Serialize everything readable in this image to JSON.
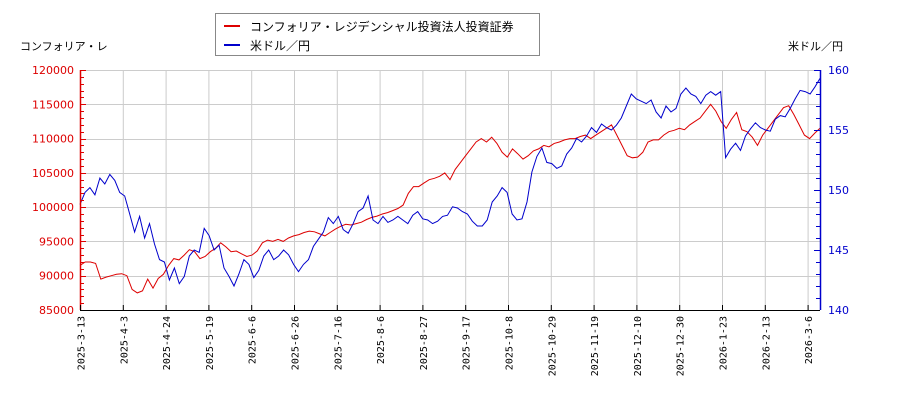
{
  "legend": {
    "series1": "コンフォリア・レジデンシャル投資法人投資証券",
    "series2": "米ドル／円"
  },
  "axes": {
    "left_title": "コンフォリア・レ",
    "right_title": "米ドル／円"
  },
  "colors": {
    "series1": "#dd0000",
    "series2": "#0000cc",
    "grid": "#cccccc"
  },
  "chart_data": {
    "type": "line",
    "title": "",
    "xlabel": "",
    "ylabel_left": "コンフォリア・レ",
    "ylabel_right": "米ドル／円",
    "x_tick_labels": [
      "2025-3-13",
      "2025-4-3",
      "2025-4-24",
      "2025-5-19",
      "2025-6-6",
      "2025-6-26",
      "2025-7-16",
      "2025-8-6",
      "2025-8-27",
      "2025-9-17",
      "2025-10-8",
      "2025-10-29",
      "2025-11-19",
      "2025-12-10",
      "2025-12-30",
      "2026-1-23",
      "2026-2-13",
      "2026-3-6"
    ],
    "y_left": {
      "min": 85000,
      "max": 120000,
      "ticks": [
        85000,
        90000,
        95000,
        100000,
        105000,
        110000,
        115000,
        120000
      ]
    },
    "y_right": {
      "min": 140,
      "max": 160,
      "ticks": [
        140,
        145,
        150,
        155,
        160
      ]
    },
    "grid": true,
    "legend_position": "top",
    "series": [
      {
        "name": "コンフォリア・レジデンシャル投資法人投資証券",
        "axis": "left",
        "color": "#dd0000",
        "values": [
          91500,
          92000,
          92000,
          91800,
          89500,
          89800,
          90000,
          90200,
          90300,
          90000,
          88000,
          87500,
          87800,
          89500,
          88200,
          89600,
          90200,
          91500,
          92500,
          92300,
          93000,
          93800,
          93500,
          92500,
          92800,
          93500,
          94000,
          94800,
          94200,
          93500,
          93600,
          93200,
          92800,
          93000,
          93600,
          94800,
          95200,
          95000,
          95300,
          95000,
          95500,
          95800,
          96000,
          96300,
          96500,
          96400,
          96100,
          95800,
          96300,
          96800,
          97200,
          97500,
          97400,
          97600,
          97800,
          98200,
          98500,
          98700,
          99000,
          99200,
          99500,
          99800,
          100300,
          102000,
          103000,
          103000,
          103500,
          104000,
          104200,
          104500,
          105000,
          104000,
          105500,
          106500,
          107500,
          108500,
          109500,
          110000,
          109500,
          110200,
          109300,
          108000,
          107300,
          108500,
          107800,
          107000,
          107500,
          108200,
          108500,
          109000,
          108800,
          109300,
          109500,
          109800,
          110000,
          110000,
          110300,
          110500,
          110000,
          110500,
          111000,
          111500,
          112000,
          110500,
          109000,
          107500,
          107200,
          107300,
          108000,
          109500,
          109800,
          109800,
          110500,
          111000,
          111200,
          111500,
          111300,
          112000,
          112500,
          113000,
          114000,
          115000,
          114000,
          112500,
          111500,
          112800,
          113800,
          111300,
          111000,
          110200,
          109000,
          110500,
          111500,
          112500,
          113500,
          114500,
          114800,
          113500,
          112000,
          110500,
          110000,
          110800,
          111500
        ],
        "y_range_note": "approx. daily closes read from chart"
      },
      {
        "name": "米ドル／円",
        "axis": "right",
        "color": "#0000cc",
        "values": [
          148.8,
          149.8,
          150.2,
          149.6,
          151.0,
          150.5,
          151.3,
          150.8,
          149.8,
          149.5,
          148.0,
          146.5,
          147.8,
          146.0,
          147.2,
          145.5,
          144.2,
          144.0,
          142.5,
          143.5,
          142.2,
          142.8,
          144.5,
          145.0,
          144.8,
          146.8,
          146.2,
          145.0,
          145.4,
          143.5,
          142.8,
          142.0,
          143.0,
          144.2,
          143.8,
          142.7,
          143.3,
          144.5,
          145.0,
          144.2,
          144.5,
          145.0,
          144.6,
          143.8,
          143.2,
          143.8,
          144.2,
          145.3,
          145.9,
          146.5,
          147.7,
          147.2,
          147.8,
          146.7,
          146.4,
          147.2,
          148.2,
          148.5,
          149.5,
          147.5,
          147.2,
          147.8,
          147.3,
          147.5,
          147.8,
          147.5,
          147.2,
          147.9,
          148.2,
          147.6,
          147.5,
          147.2,
          147.4,
          147.8,
          147.9,
          148.6,
          148.5,
          148.2,
          148.0,
          147.4,
          147.0,
          147.0,
          147.5,
          149.0,
          149.5,
          150.2,
          149.8,
          148.0,
          147.5,
          147.6,
          149.0,
          151.5,
          152.8,
          153.5,
          152.3,
          152.2,
          151.8,
          152.0,
          153.0,
          153.5,
          154.3,
          154.0,
          154.5,
          155.2,
          154.8,
          155.5,
          155.2,
          155.0,
          155.4,
          156.0,
          157.0,
          158.0,
          157.6,
          157.4,
          157.2,
          157.5,
          156.5,
          156.0,
          157.0,
          156.5,
          156.8,
          158.0,
          158.5,
          158.0,
          157.8,
          157.2,
          157.9,
          158.2,
          157.9,
          158.2,
          152.7,
          153.4,
          153.9,
          153.3,
          154.5,
          155.1,
          155.6,
          155.2,
          155.0,
          154.9,
          155.9,
          156.2,
          156.1,
          156.8,
          157.6,
          158.3,
          158.2,
          158.0,
          158.6,
          159.3
        ]
      }
    ]
  }
}
